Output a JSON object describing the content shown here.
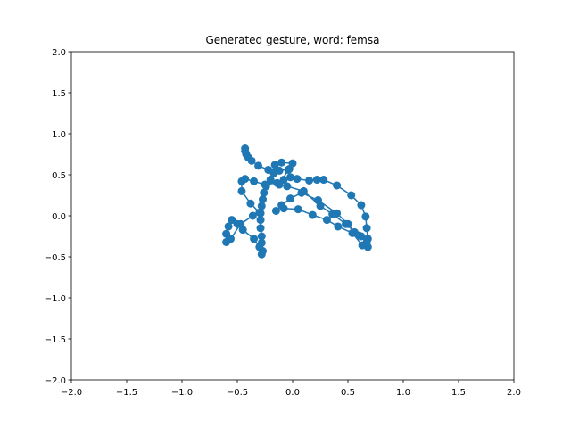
{
  "chart_data": {
    "type": "line",
    "title": "Generated gesture, word: femsa",
    "x": [
      -0.43,
      -0.43,
      -0.42,
      -0.4,
      -0.37,
      -0.31,
      -0.22,
      -0.17,
      -0.2,
      -0.24,
      -0.26,
      -0.27,
      -0.28,
      -0.29,
      -0.29,
      -0.29,
      -0.28,
      -0.28,
      -0.27,
      -0.28,
      -0.3,
      -0.35,
      -0.45,
      -0.5,
      -0.55,
      -0.58,
      -0.6,
      -0.6,
      -0.56,
      -0.47,
      -0.36,
      -0.3,
      -0.38,
      -0.46,
      -0.46,
      -0.43,
      -0.35,
      -0.25,
      -0.14,
      -0.08,
      -0.02,
      0.04,
      0.15,
      0.22,
      0.28,
      0.4,
      0.53,
      0.62,
      0.66,
      0.67,
      0.68,
      0.68,
      0.63,
      0.54,
      0.41,
      0.31,
      0.18,
      0.05,
      -0.08,
      -0.15,
      -0.1,
      -0.02,
      0.08,
      0.23,
      0.4,
      0.5,
      0.56,
      0.62,
      0.67,
      0.6,
      0.48,
      0.36,
      0.25,
      0.1,
      -0.05,
      -0.12,
      -0.04,
      0.0,
      -0.1,
      -0.16,
      -0.12,
      -0.03
    ],
    "y": [
      0.82,
      0.79,
      0.75,
      0.71,
      0.67,
      0.61,
      0.56,
      0.52,
      0.44,
      0.36,
      0.28,
      0.2,
      0.12,
      0.03,
      -0.05,
      -0.15,
      -0.25,
      -0.33,
      -0.43,
      -0.47,
      -0.38,
      -0.28,
      -0.17,
      -0.1,
      -0.05,
      -0.13,
      -0.22,
      -0.32,
      -0.28,
      -0.1,
      0.0,
      0.04,
      0.15,
      0.3,
      0.42,
      0.45,
      0.42,
      0.38,
      0.4,
      0.44,
      0.47,
      0.45,
      0.43,
      0.44,
      0.44,
      0.37,
      0.25,
      0.13,
      -0.01,
      -0.15,
      -0.28,
      -0.38,
      -0.36,
      -0.21,
      -0.13,
      -0.05,
      0.01,
      0.08,
      0.09,
      0.06,
      0.13,
      0.21,
      0.28,
      0.19,
      0.03,
      -0.1,
      -0.2,
      -0.25,
      -0.32,
      -0.24,
      -0.1,
      0.02,
      0.12,
      0.3,
      0.36,
      0.38,
      0.56,
      0.64,
      0.65,
      0.62,
      0.55,
      0.57
    ],
    "color": "#1f77b4",
    "xlim": [
      -2,
      2
    ],
    "ylim": [
      -2,
      2
    ],
    "xticks": [
      {
        "value": -2,
        "label": "−2.0"
      },
      {
        "value": -1.5,
        "label": "−1.5"
      },
      {
        "value": -1,
        "label": "−1.0"
      },
      {
        "value": -0.5,
        "label": "−0.5"
      },
      {
        "value": 0,
        "label": "0.0"
      },
      {
        "value": 0.5,
        "label": "0.5"
      },
      {
        "value": 1,
        "label": "1.0"
      },
      {
        "value": 1.5,
        "label": "1.5"
      },
      {
        "value": 2,
        "label": "2.0"
      }
    ],
    "yticks": [
      {
        "value": -2,
        "label": "−2.0"
      },
      {
        "value": -1.5,
        "label": "−1.5"
      },
      {
        "value": -1,
        "label": "−1.0"
      },
      {
        "value": -0.5,
        "label": "−0.5"
      },
      {
        "value": 0,
        "label": "0.0"
      },
      {
        "value": 0.5,
        "label": "0.5"
      },
      {
        "value": 1,
        "label": "1.0"
      },
      {
        "value": 1.5,
        "label": "1.5"
      },
      {
        "value": 2,
        "label": "2.0"
      }
    ]
  }
}
